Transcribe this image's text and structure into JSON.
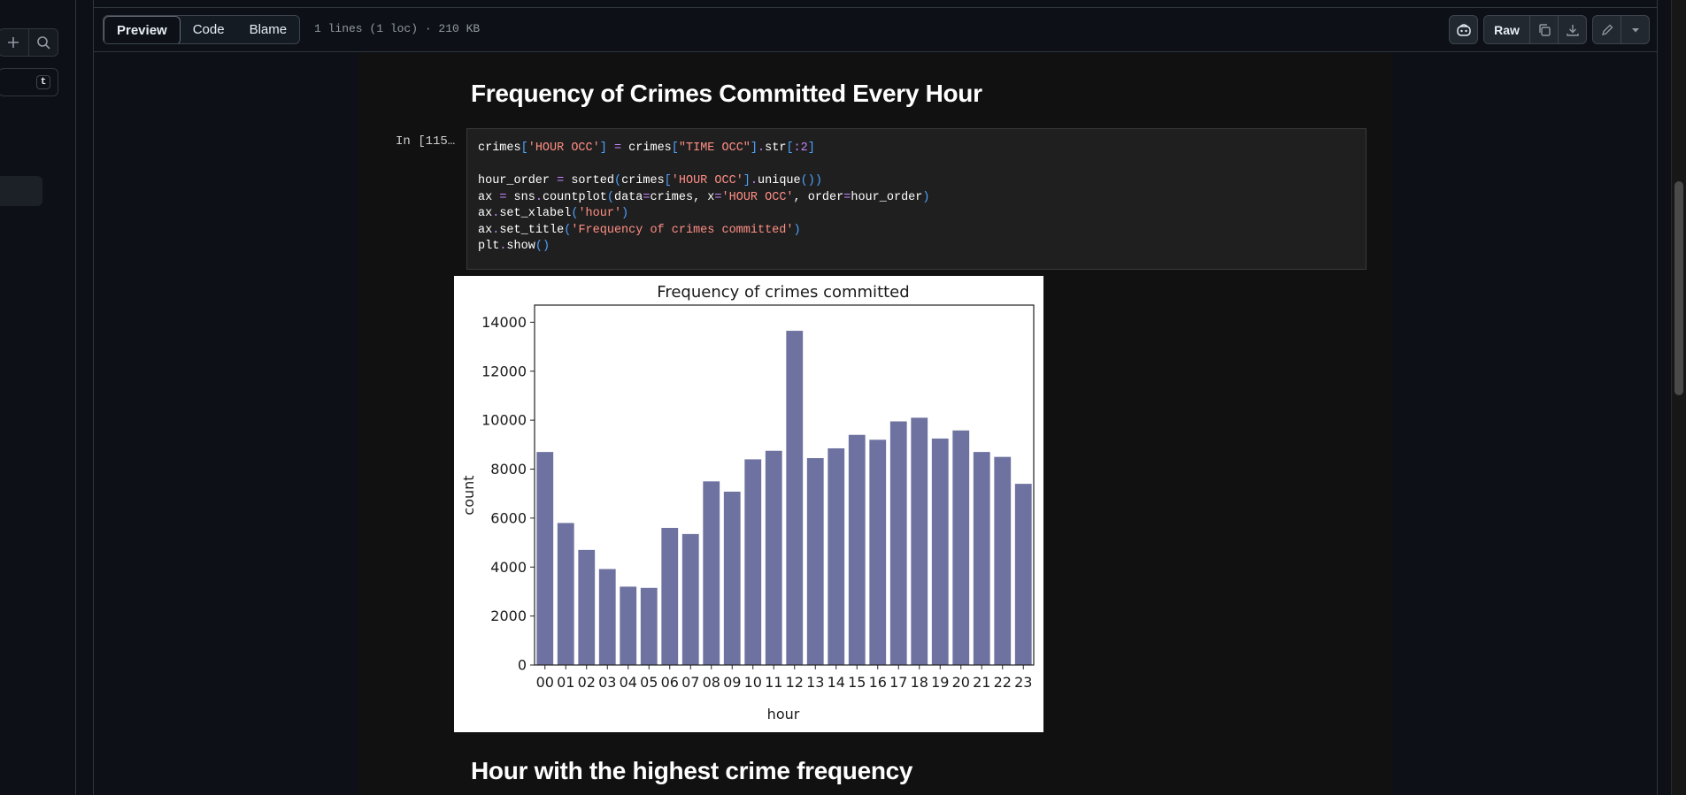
{
  "left_sidebar": {
    "add_icon": "plus-icon",
    "search_icon": "search-icon",
    "filter_shortcut": "t"
  },
  "file_header": {
    "tabs": [
      {
        "label": "Preview",
        "active": true
      },
      {
        "label": "Code",
        "active": false
      },
      {
        "label": "Blame",
        "active": false
      }
    ],
    "meta": "1 lines (1 loc) · 210 KB",
    "raw_label": "Raw"
  },
  "notebook": {
    "heading_top": "Frequency of Crimes Committed Every Hour",
    "cell_prompt": "In [115…",
    "code_lines": [
      "crimes['HOUR OCC'] = crimes[\"TIME OCC\"].str[:2]",
      "",
      "hour_order = sorted(crimes['HOUR OCC'].unique())",
      "ax = sns.countplot(data=crimes, x='HOUR OCC', order=hour_order)",
      "ax.set_xlabel('hour')",
      "ax.set_title('Frequency of crimes committed')",
      "plt.show()"
    ],
    "heading_bottom": "Hour with the highest crime frequency"
  },
  "chart_data": {
    "type": "bar",
    "title": "Frequency of crimes committed",
    "xlabel": "hour",
    "ylabel": "count",
    "categories": [
      "00",
      "01",
      "02",
      "03",
      "04",
      "05",
      "06",
      "07",
      "08",
      "09",
      "10",
      "11",
      "12",
      "13",
      "14",
      "15",
      "16",
      "17",
      "18",
      "19",
      "20",
      "21",
      "22",
      "23"
    ],
    "values": [
      8700,
      5800,
      4700,
      3920,
      3200,
      3150,
      5600,
      5350,
      7500,
      7080,
      8400,
      8750,
      13650,
      8450,
      8850,
      9400,
      9200,
      9950,
      10100,
      9250,
      9580,
      8700,
      8500,
      7400
    ],
    "ylim": [
      0,
      14700
    ],
    "yticks": [
      0,
      2000,
      4000,
      6000,
      8000,
      10000,
      12000,
      14000
    ],
    "bar_color": "#6e72a0",
    "grid": false
  },
  "colors": {
    "page_bg": "#0d1117",
    "notebook_bg": "#111111",
    "code_bg": "#1f1f1f",
    "string": "#ff8e84",
    "operator": "#c586ff",
    "bracket": "#4ea1ff"
  }
}
